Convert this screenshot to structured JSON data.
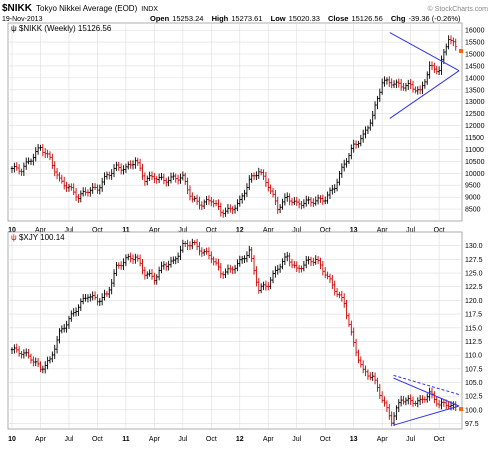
{
  "header": {
    "symbol": "$NIKK",
    "name": "Tokyo Nikkei Average (EOD)",
    "exchange": "INDX",
    "date": "19-Nov-2013",
    "open_label": "Open",
    "open": "15253.24",
    "high_label": "High",
    "high": "15273.61",
    "low_label": "Low",
    "low": "15020.33",
    "close_label": "Close",
    "close": "15126.56",
    "chg_label": "Chg",
    "chg": "-39.36 (-0.26%)",
    "copyright": "© StockCharts.com"
  },
  "colors": {
    "up": "#000000",
    "down": "#cc0000",
    "trendline": "#3333ee",
    "grid": "#dddddd",
    "last_price_marker": "#ff6600"
  },
  "chart_data": [
    {
      "type": "bar",
      "panel_label": "$NIKK (Weekly) 15126.56",
      "series_name": "$NIKK (Weekly)",
      "last_value": 15126.56,
      "style": "OHLC",
      "ylim": [
        8000,
        16300
      ],
      "y_ticks": [
        8500,
        9000,
        9500,
        10000,
        10500,
        11000,
        11500,
        12000,
        12500,
        13000,
        13500,
        14000,
        14500,
        15000,
        15500,
        16000
      ],
      "x_tick_labels": [
        "10",
        "Apr",
        "Jul",
        "Oct",
        "11",
        "Apr",
        "Jul",
        "Oct",
        "12",
        "Apr",
        "Jul",
        "Oct",
        "13",
        "Apr",
        "Jul",
        "Oct"
      ],
      "x_range_months": [
        0,
        47
      ],
      "grid": true,
      "monthly_closes": {
        "x_month_index": [
          0,
          1,
          2,
          3,
          4,
          5,
          6,
          7,
          8,
          9,
          10,
          11,
          12,
          13,
          14,
          15,
          16,
          17,
          18,
          19,
          20,
          21,
          22,
          23,
          24,
          25,
          26,
          27,
          28,
          29,
          30,
          31,
          32,
          33,
          34,
          35,
          36,
          37,
          38,
          39,
          40,
          41,
          42,
          43,
          44,
          45,
          46,
          47
        ],
        "values": [
          10200,
          10150,
          10600,
          11100,
          10600,
          9700,
          9400,
          9000,
          9300,
          9350,
          9900,
          10250,
          10200,
          10550,
          9750,
          9850,
          9700,
          9800,
          9830,
          8900,
          8700,
          8900,
          8400,
          8450,
          8800,
          9700,
          10100,
          9500,
          8550,
          9000,
          8700,
          8800,
          8850,
          8930,
          9450,
          10400,
          11150,
          11550,
          12400,
          13850,
          13800,
          13670,
          13670,
          13400,
          14450,
          14330,
          15700,
          15126.56
        ]
      },
      "trendlines": [
        {
          "from": {
            "month": 39.8,
            "value": 15900
          },
          "to": {
            "month": 47.1,
            "value": 14300
          }
        },
        {
          "from": {
            "month": 39.8,
            "value": 12300
          },
          "to": {
            "month": 47.1,
            "value": 14300
          }
        }
      ]
    },
    {
      "type": "bar",
      "panel_label": "$XJY 100.14",
      "series_name": "$XJY",
      "last_value": 100.14,
      "style": "OHLC",
      "ylim": [
        96.5,
        132.5
      ],
      "y_ticks": [
        97.5,
        100.0,
        102.5,
        105.0,
        107.5,
        110.0,
        112.5,
        115.0,
        117.5,
        120.0,
        122.5,
        125.0,
        127.5,
        130.0
      ],
      "x_tick_labels": [
        "10",
        "Apr",
        "Jul",
        "Oct",
        "11",
        "Apr",
        "Jul",
        "Oct",
        "12",
        "Apr",
        "Jul",
        "Oct",
        "13",
        "Apr",
        "Jul",
        "Oct"
      ],
      "x_range_months": [
        0,
        47
      ],
      "grid": true,
      "monthly_closes": {
        "x_month_index": [
          0,
          1,
          2,
          3,
          4,
          5,
          6,
          7,
          8,
          9,
          10,
          11,
          12,
          13,
          14,
          15,
          16,
          17,
          18,
          19,
          20,
          21,
          22,
          23,
          24,
          25,
          26,
          27,
          28,
          29,
          30,
          31,
          32,
          33,
          34,
          35,
          36,
          37,
          38,
          39,
          40,
          41,
          42,
          43,
          44,
          45,
          46,
          47
        ],
        "values": [
          111,
          110.5,
          109.5,
          107.5,
          109,
          114,
          116.5,
          119,
          121,
          120,
          121,
          126,
          127.5,
          128,
          125,
          124,
          126.5,
          127,
          130,
          130.5,
          129,
          128,
          125,
          125.5,
          127,
          129,
          122,
          123,
          126,
          128,
          125.5,
          127,
          127.5,
          125,
          122,
          119.5,
          112,
          107,
          106,
          102,
          98,
          102,
          101.5,
          101.5,
          103,
          101,
          101,
          100.14
        ]
      },
      "trendlines": [
        {
          "from": {
            "month": 40.2,
            "value": 97.2
          },
          "to": {
            "month": 47.1,
            "value": 100.7
          },
          "style": "solid"
        },
        {
          "from": {
            "month": 40.2,
            "value": 105.8
          },
          "to": {
            "month": 47.1,
            "value": 100.7
          },
          "style": "solid"
        },
        {
          "from": {
            "month": 40.2,
            "value": 106.3
          },
          "to": {
            "month": 47.1,
            "value": 102.8
          },
          "style": "dashed"
        }
      ]
    }
  ]
}
